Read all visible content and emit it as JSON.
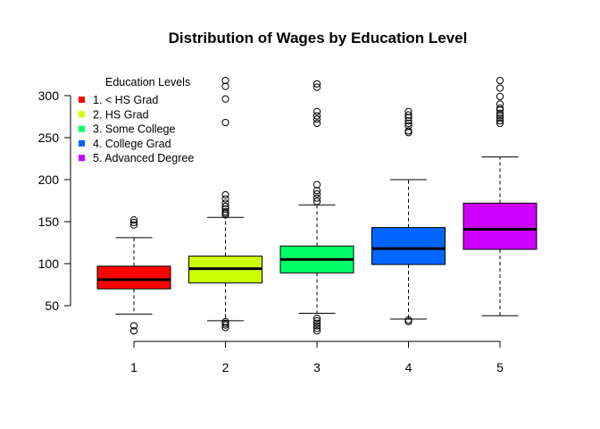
{
  "chart_data": {
    "type": "boxplot",
    "title": "Distribution of Wages by Education Level",
    "xlabel": "",
    "ylabel": "",
    "categories": [
      "1",
      "2",
      "3",
      "4",
      "5"
    ],
    "ylim": [
      25,
      325
    ],
    "yticks": [
      50,
      100,
      150,
      200,
      250,
      300
    ],
    "grid": false,
    "legend": {
      "title": "Education Levels",
      "position": "top-left",
      "entries": [
        "1. < HS Grad",
        "2. HS Grad",
        "3. Some College",
        "4. College Grad",
        "5. Advanced Degree"
      ]
    },
    "colors": [
      "#FF0000",
      "#CCFF00",
      "#00FF66",
      "#0066FF",
      "#CC00FF"
    ],
    "boxes": [
      {
        "whisker_low": 40,
        "q1": 70,
        "median": 81,
        "q3": 97,
        "whisker_high": 131,
        "outliers": [
          20,
          26,
          146,
          149,
          152
        ]
      },
      {
        "whisker_low": 32,
        "q1": 77,
        "median": 94,
        "q3": 109,
        "whisker_high": 155,
        "outliers": [
          24,
          27,
          29,
          31,
          158,
          160,
          162,
          165,
          168,
          172,
          177,
          182,
          268,
          296,
          311,
          318
        ]
      },
      {
        "whisker_low": 41,
        "q1": 89,
        "median": 105,
        "q3": 121,
        "whisker_high": 170,
        "outliers": [
          20,
          23,
          26,
          29,
          32,
          35,
          174,
          178,
          183,
          187,
          194,
          267,
          272,
          276,
          281,
          310,
          314
        ]
      },
      {
        "whisker_low": 34,
        "q1": 99,
        "median": 118,
        "q3": 143,
        "whisker_high": 200,
        "outliers": [
          31,
          33,
          256,
          258,
          264,
          267,
          270,
          274,
          277,
          281
        ]
      },
      {
        "whisker_low": 38,
        "q1": 117,
        "median": 141,
        "q3": 172,
        "whisker_high": 227,
        "outliers": [
          267,
          270,
          273,
          276,
          279,
          283,
          285,
          290,
          299,
          309,
          318
        ]
      }
    ]
  }
}
